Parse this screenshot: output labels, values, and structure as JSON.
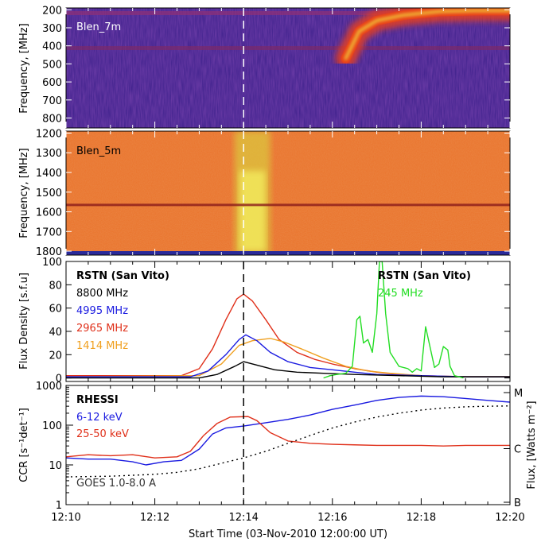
{
  "chart_data": [
    {
      "type": "heatmap",
      "panel_label": "Blen_7m",
      "ylabel": "Frequency, [MHz]",
      "yticks": [
        200,
        300,
        400,
        500,
        600,
        700,
        800
      ],
      "ylim": [
        855,
        190
      ],
      "xlim": [
        0,
        10
      ],
      "colors": {
        "background": "#3a1f8a",
        "burst": "#e8401a",
        "core": "#f2d23a"
      },
      "burst_ridge": {
        "x": [
          6.3,
          6.6,
          7.0,
          7.6,
          8.4,
          9.2,
          10.0
        ],
        "freq": [
          470,
          320,
          260,
          230,
          210,
          205,
          205
        ]
      },
      "dashed_line_x": 4.0
    },
    {
      "type": "heatmap",
      "panel_label": "Blen_5m",
      "ylabel": "Frequency, [MHz]",
      "yticks": [
        1200,
        1300,
        1400,
        1500,
        1600,
        1700,
        1800
      ],
      "ylim": [
        1820,
        1190
      ],
      "xlim": [
        0,
        10
      ],
      "colors": {
        "background": "#e9722a",
        "band": "#d8e040",
        "line": "#8a1a1a"
      },
      "band_x": [
        3.8,
        4.6
      ],
      "horizontal_line_freq": 1565,
      "dashed_line_x": 4.0
    },
    {
      "type": "line",
      "ylabel": "Flux Density [s.f.u]",
      "yticks": [
        0,
        20,
        40,
        60,
        80,
        100
      ],
      "ylim": [
        -3,
        100
      ],
      "xlim": [
        0,
        10
      ],
      "legend_left": {
        "title": "RSTN (San Vito)",
        "entries": [
          {
            "label": "8800 MHz",
            "color": "#000000"
          },
          {
            "label": "4995 MHz",
            "color": "#1a1ae0"
          },
          {
            "label": "2965 MHz",
            "color": "#e0301a"
          },
          {
            "label": "1414 MHz",
            "color": "#f0a020"
          }
        ]
      },
      "legend_right": {
        "title": "RSTN (San Vito)",
        "entries": [
          {
            "label": "245 MHz",
            "color": "#22dd22"
          }
        ]
      },
      "series": [
        {
          "name": "2965 MHz",
          "color": "#e0301a",
          "x": [
            0,
            2.6,
            3.0,
            3.3,
            3.6,
            3.85,
            4.0,
            4.2,
            4.5,
            4.8,
            5.2,
            5.6,
            6.0,
            6.5,
            7.0,
            7.5,
            8.0,
            9.0,
            10.0
          ],
          "y": [
            2,
            2,
            8,
            25,
            50,
            68,
            72,
            66,
            50,
            33,
            22,
            16,
            12,
            8,
            5,
            3,
            2,
            1,
            1
          ]
        },
        {
          "name": "1414 MHz",
          "color": "#f0a020",
          "x": [
            0,
            3.0,
            3.5,
            3.9,
            4.2,
            4.6,
            4.9,
            5.3,
            5.8,
            6.3,
            6.8,
            7.3,
            8.0,
            9.0,
            10.0
          ],
          "y": [
            1,
            2,
            12,
            28,
            32,
            34,
            31,
            25,
            17,
            10,
            6,
            4,
            2,
            1,
            1
          ]
        },
        {
          "name": "4995 MHz",
          "color": "#1a1ae0",
          "x": [
            0,
            2.8,
            3.2,
            3.6,
            3.9,
            4.05,
            4.3,
            4.6,
            5.0,
            5.5,
            6.0,
            6.5,
            7.0,
            8.0,
            9.0,
            10.0
          ],
          "y": [
            1,
            1,
            6,
            20,
            33,
            37,
            32,
            22,
            14,
            9,
            7,
            5,
            3,
            2,
            1,
            1
          ]
        },
        {
          "name": "8800 MHz",
          "color": "#000000",
          "x": [
            0,
            3.0,
            3.4,
            3.8,
            4.0,
            4.3,
            4.7,
            5.2,
            5.8,
            6.5,
            7.5,
            8.5,
            10.0
          ],
          "y": [
            0,
            0,
            3,
            10,
            14,
            11,
            7,
            5,
            4,
            3,
            2,
            1,
            1
          ]
        },
        {
          "name": "245 MHz",
          "color": "#22dd22",
          "x": [
            5.8,
            5.95,
            6.1,
            6.3,
            6.45,
            6.55,
            6.62,
            6.7,
            6.8,
            6.9,
            7.0,
            7.06,
            7.12,
            7.2,
            7.3,
            7.5,
            7.7,
            7.8,
            7.9,
            8.0,
            8.1,
            8.3,
            8.4,
            8.5,
            8.6,
            8.65,
            8.75,
            8.95
          ],
          "y": [
            0,
            2,
            3,
            4,
            10,
            50,
            53,
            30,
            33,
            22,
            55,
            100,
            100,
            55,
            22,
            10,
            8,
            5,
            8,
            6,
            44,
            9,
            12,
            27,
            24,
            10,
            2,
            0
          ]
        }
      ],
      "dashed_line_x": 4.0
    },
    {
      "type": "line",
      "ylabel": "CCR [s⁻¹det⁻¹]",
      "y2label": "Flux, [Watts m⁻²]",
      "yscale": "log",
      "yticks": [
        1,
        10,
        100,
        1000
      ],
      "ylim": [
        1,
        1000
      ],
      "xlim": [
        0,
        10
      ],
      "xlabel": "Start Time (03-Nov-2010 12:00:00 UT)",
      "xticks": [
        "12:10",
        "12:12",
        "12:14",
        "12:16",
        "12:18",
        "12:20"
      ],
      "right_ticks": [
        "M",
        "C",
        "B"
      ],
      "legend": {
        "title": "RHESSI",
        "entries": [
          {
            "label": "6-12 keV",
            "color": "#1a1ae0"
          },
          {
            "label": "25-50 keV",
            "color": "#e0301a"
          }
        ],
        "goes_label": "GOES 1.0-8.0 A"
      },
      "series": [
        {
          "name": "6-12 keV",
          "color": "#1a1ae0",
          "x": [
            0,
            0.5,
            1.0,
            1.5,
            1.8,
            2.2,
            2.6,
            3.0,
            3.3,
            3.6,
            4.0,
            4.5,
            5.0,
            5.5,
            6.0,
            6.5,
            7.0,
            7.5,
            8.0,
            8.5,
            9.0,
            9.5,
            10.0
          ],
          "y": [
            15,
            14,
            14,
            12,
            10,
            12,
            13,
            25,
            60,
            85,
            95,
            115,
            140,
            180,
            250,
            320,
            420,
            500,
            540,
            520,
            470,
            420,
            380
          ]
        },
        {
          "name": "25-50 keV",
          "color": "#e0301a",
          "x": [
            0,
            0.5,
            1.0,
            1.5,
            2.0,
            2.5,
            2.8,
            3.1,
            3.4,
            3.7,
            4.1,
            4.3,
            4.6,
            5.0,
            5.5,
            6.0,
            6.5,
            7.0,
            7.5,
            8.0,
            8.5,
            9.0,
            9.5,
            10.0
          ],
          "y": [
            16,
            18,
            17,
            18,
            15,
            16,
            22,
            55,
            110,
            160,
            165,
            130,
            65,
            40,
            35,
            33,
            32,
            31,
            31,
            31,
            30,
            31,
            31,
            31
          ]
        },
        {
          "name": "GOES 1.0-8.0 A",
          "color": "#000000",
          "dashed": true,
          "x": [
            0,
            1.0,
            2.0,
            2.5,
            3.0,
            3.5,
            4.0,
            4.5,
            5.0,
            5.5,
            6.0,
            6.5,
            7.0,
            7.5,
            8.0,
            8.5,
            9.0,
            9.5,
            10.0
          ],
          "y": [
            5.0,
            5.2,
            5.8,
            6.5,
            8.0,
            11,
            15,
            22,
            35,
            55,
            85,
            120,
            160,
            200,
            240,
            270,
            290,
            300,
            305
          ]
        }
      ],
      "dashed_line_x": 4.0
    }
  ]
}
